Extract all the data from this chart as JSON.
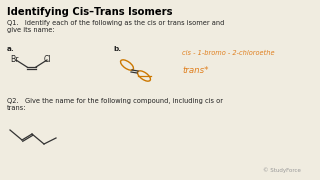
{
  "title": "Identifying Cis–Trans Isomers",
  "bg_color": "#f0ece0",
  "title_color": "#000000",
  "annotation_color": "#e08020",
  "text_color": "#222222",
  "q1_text": "Q1.   Identify each of the following as the cis or trans isomer and\ngive its name:",
  "q2_text": "Q2.   Give the name for the following compound, including cis or\ntrans:",
  "label_a": "a.",
  "label_b": "b.",
  "annotation1": "cis - 1-bromo - 2-chloroethe",
  "annotation2": "trans*",
  "studyforce_color": "#999999",
  "studyforce_text": "StudyForce"
}
